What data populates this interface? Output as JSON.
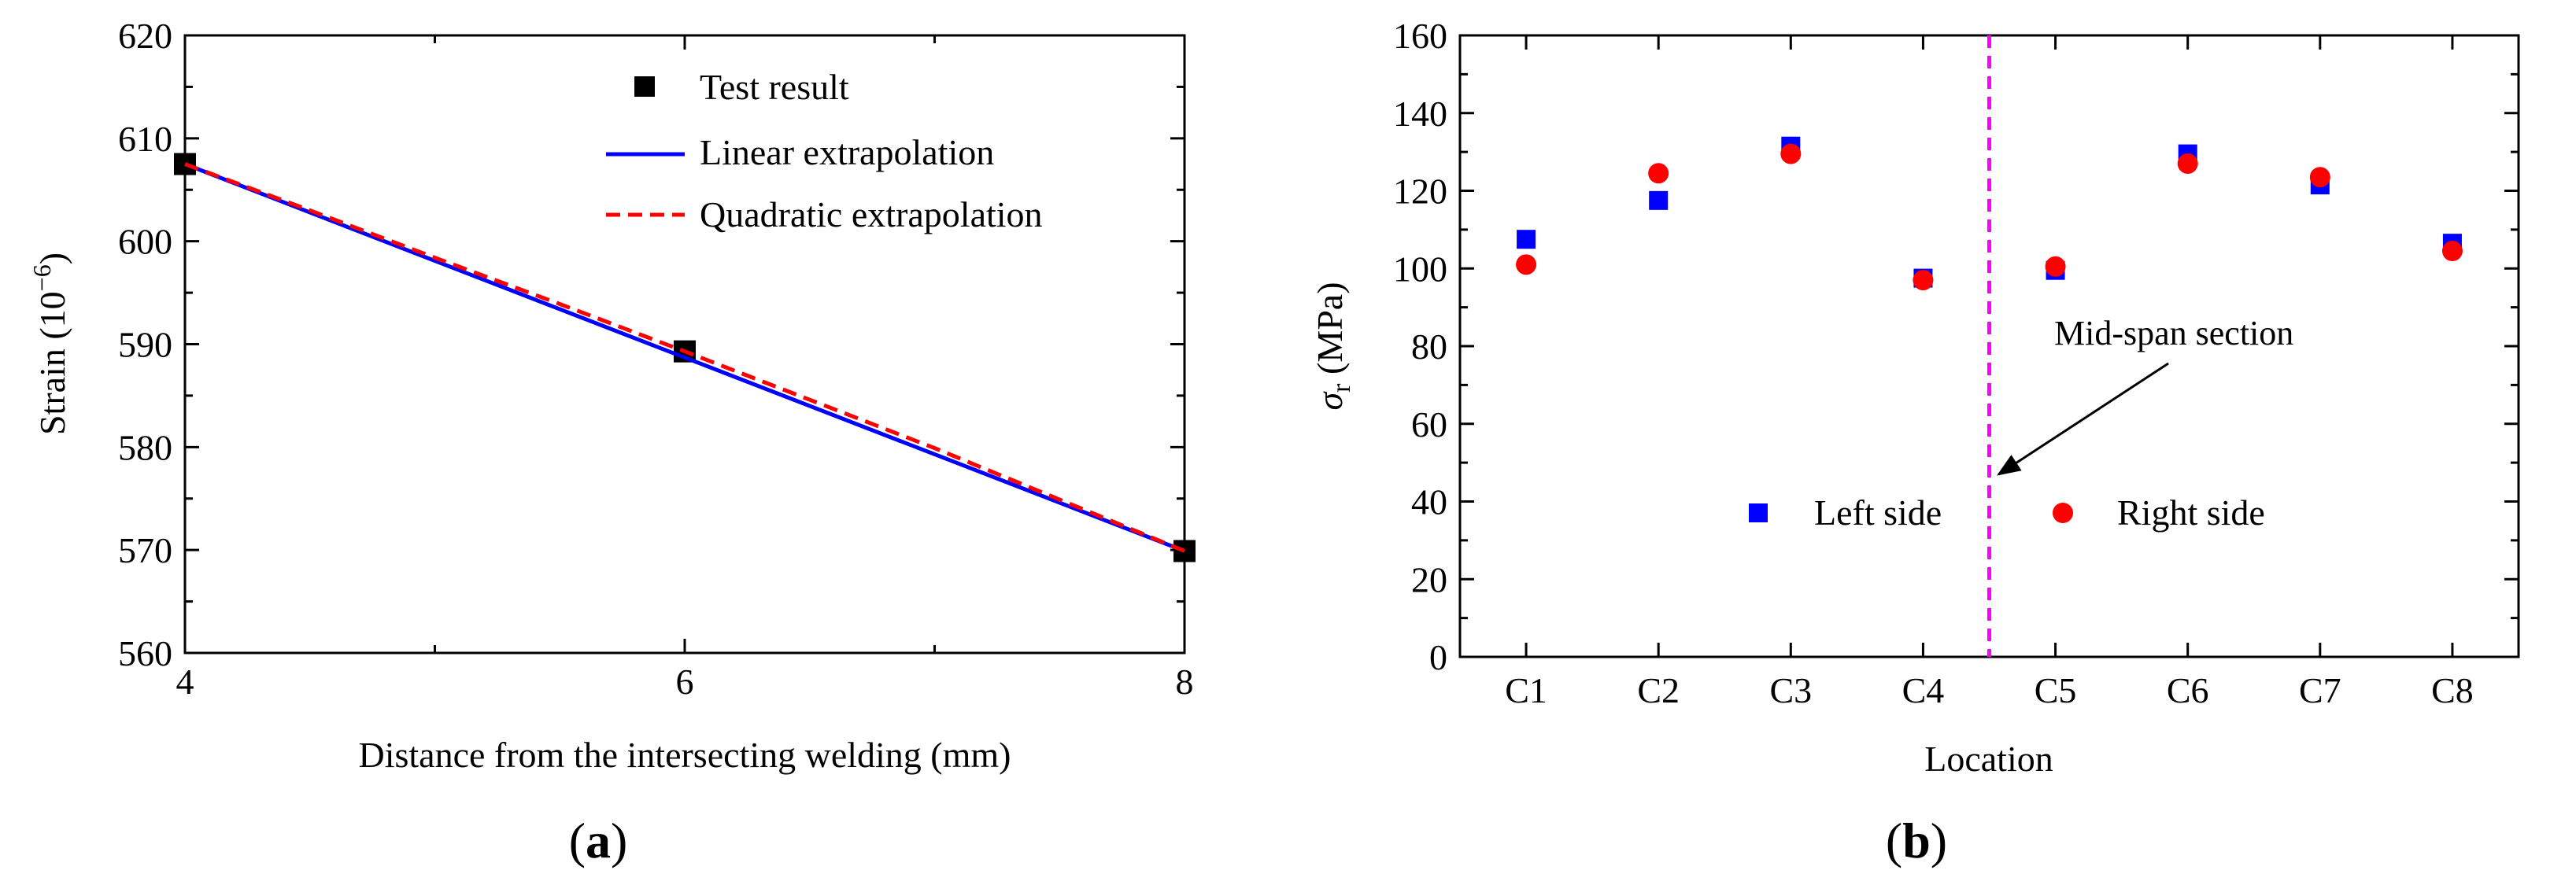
{
  "chart_data": [
    {
      "panel_label": "(a)",
      "panel_letter": "a",
      "type": "line",
      "title": "",
      "xlabel": "Distance from the intersecting welding (mm)",
      "ylabel": "Strain (10",
      "ylabel_sup": "−6",
      "ylabel_end": ")",
      "xlim": [
        4,
        8
      ],
      "ylim": [
        560,
        620
      ],
      "xticks": [
        4,
        6,
        8
      ],
      "yticks": [
        560,
        570,
        580,
        590,
        600,
        610,
        620
      ],
      "legend_position": "top-right",
      "series": [
        {
          "name": "Test result",
          "kind": "scatter",
          "marker": "square",
          "color": "#000000",
          "x": [
            4,
            6,
            8
          ],
          "y": [
            607.5,
            589.3,
            569.9
          ]
        },
        {
          "name": "Linear extrapolation",
          "kind": "line",
          "style": "solid",
          "color": "#0000ff",
          "x": [
            4,
            8
          ],
          "y": [
            607.5,
            569.9
          ]
        },
        {
          "name": "Quadratic extrapolation",
          "kind": "line",
          "style": "dashed",
          "color": "#ff0000",
          "x": [
            4,
            4.5,
            5,
            5.5,
            6,
            6.5,
            7,
            7.5,
            8
          ],
          "y": [
            607.5,
            603.0,
            598.4,
            593.9,
            589.3,
            584.6,
            579.9,
            574.9,
            569.9
          ]
        }
      ]
    },
    {
      "panel_label": "(b)",
      "panel_letter": "b",
      "type": "scatter",
      "title": "",
      "xlabel": "Location",
      "ylabel_symbol": "σ",
      "ylabel_sub": "r",
      "ylabel_unit": " (MPa)",
      "categories": [
        "C1",
        "C2",
        "C3",
        "C4",
        "C5",
        "C6",
        "C7",
        "C8"
      ],
      "ylim": [
        0,
        160
      ],
      "yticks": [
        0,
        20,
        40,
        60,
        80,
        100,
        120,
        140,
        160
      ],
      "legend_position": "bottom-center",
      "series": [
        {
          "name": "Left side",
          "marker": "square",
          "color": "#0000ff",
          "values": [
            107.5,
            117.5,
            131.5,
            97.5,
            99.5,
            129.5,
            121.5,
            106.5
          ]
        },
        {
          "name": "Right side",
          "marker": "circle",
          "color": "#ff0000",
          "values": [
            101,
            124.5,
            129.5,
            97,
            100.5,
            127,
            123.5,
            104.5
          ]
        }
      ],
      "reference_line": {
        "position": 4.5,
        "color": "#ff00ff",
        "style": "dashed"
      },
      "annotation": {
        "text": "Mid-span section",
        "target_y": 47
      }
    }
  ]
}
